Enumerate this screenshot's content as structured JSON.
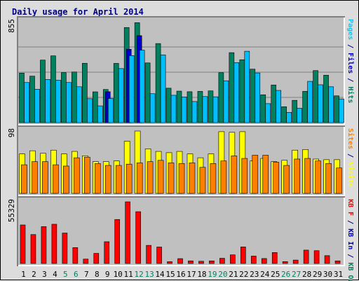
{
  "chart_data": {
    "type": "bar",
    "title": "Daily usage for April 2014",
    "categories": [
      "1",
      "2",
      "3",
      "4",
      "5",
      "6",
      "7",
      "8",
      "9",
      "10",
      "11",
      "12",
      "13",
      "14",
      "15",
      "16",
      "17",
      "18",
      "19",
      "20",
      "21",
      "22",
      "23",
      "24",
      "25",
      "26",
      "27",
      "28",
      "29",
      "30",
      "31"
    ],
    "weekend_days": [
      "5",
      "6",
      "12",
      "13",
      "19",
      "20",
      "26",
      "27"
    ],
    "panels": [
      {
        "max_label": "855",
        "axis_label_parts": [
          {
            "text": "Pages",
            "color": "#00ccff"
          },
          {
            "text": " / ",
            "color": "#000080"
          },
          {
            "text": "Files",
            "color": "#0000cc"
          },
          {
            "text": " / ",
            "color": "#000080"
          },
          {
            "text": "Hits",
            "color": "#008060"
          }
        ],
        "ylim": [
          0,
          855
        ],
        "series": [
          {
            "name": "Hits",
            "color": "#00805f",
            "values": [
              420,
              394,
              530,
              566,
              424,
              429,
              503,
              261,
              281,
              502,
              806,
              847,
              506,
              670,
              292,
              267,
              262,
              265,
              269,
              423,
              593,
              533,
              453,
              236,
              319,
              135,
              189,
              265,
              441,
              402,
              227
            ]
          },
          {
            "name": "Files",
            "color": "#0000cc",
            "values": [
              0,
              0,
              0,
              0,
              0,
              0,
              0,
              0,
              262,
              0,
              622,
              737,
              0,
              0,
              0,
              0,
              0,
              0,
              0,
              0,
              0,
              0,
              0,
              0,
              0,
              0,
              0,
              0,
              0,
              0,
              0
            ]
          },
          {
            "name": "Pages",
            "color": "#00bfff",
            "values": [
              340,
              283,
              366,
              360,
              340,
              304,
              203,
              142,
              205,
              458,
              568,
              614,
              245,
              574,
              232,
              218,
              179,
              221,
              219,
              355,
              509,
              605,
              421,
              161,
              273,
              87,
              122,
              350,
              321,
              304,
              201
            ]
          }
        ]
      },
      {
        "max_label": "98",
        "axis_label_parts": [
          {
            "text": "Sites",
            "color": "#ff8000"
          },
          {
            "text": " / ",
            "color": "#000080"
          },
          {
            "text": "Visits",
            "color": "#ffff00"
          }
        ],
        "ylim": [
          0,
          98
        ],
        "series": [
          {
            "name": "Visits",
            "color": "#ffff00",
            "values": [
              62,
              67,
              63,
              68,
              62,
              66,
              59,
              50,
              50,
              51,
              82,
              98,
              70,
              66,
              64,
              66,
              62,
              56,
              62,
              97,
              96,
              97,
              51,
              55,
              50,
              52,
              68,
              69,
              54,
              53,
              53
            ]
          },
          {
            "name": "Sites",
            "color": "#ff8000",
            "values": [
              45,
              50,
              50,
              45,
              43,
              56,
              57,
              47,
              44,
              44,
              46,
              48,
              50,
              52,
              48,
              47,
              48,
              41,
              47,
              51,
              59,
              55,
              60,
              60,
              49,
              44,
              54,
              55,
              51,
              47,
              40
            ]
          }
        ]
      },
      {
        "max_label": "55329",
        "axis_label_parts": [
          {
            "text": "KB F",
            "color": "#ff0000"
          },
          {
            "text": " / ",
            "color": "#000080"
          },
          {
            "text": "KB In",
            "color": "#0000cc"
          },
          {
            "text": " / ",
            "color": "#000080"
          },
          {
            "text": "KB Out",
            "color": "#008060"
          }
        ],
        "ylim": [
          0,
          55329
        ],
        "series": [
          {
            "name": "KB F",
            "color": "#ff0000",
            "values": [
              34580,
              25970,
              33080,
              35230,
              27320,
              14280,
              3940,
              9090,
              19530,
              39480,
              55329,
              46480,
              16270,
              14790,
              1610,
              4370,
              2340,
              2020,
              2320,
              4690,
              7750,
              14850,
              6640,
              4460,
              9830,
              1700,
              3070,
              12000,
              11500,
              7040,
              2330
            ]
          }
        ]
      }
    ]
  }
}
